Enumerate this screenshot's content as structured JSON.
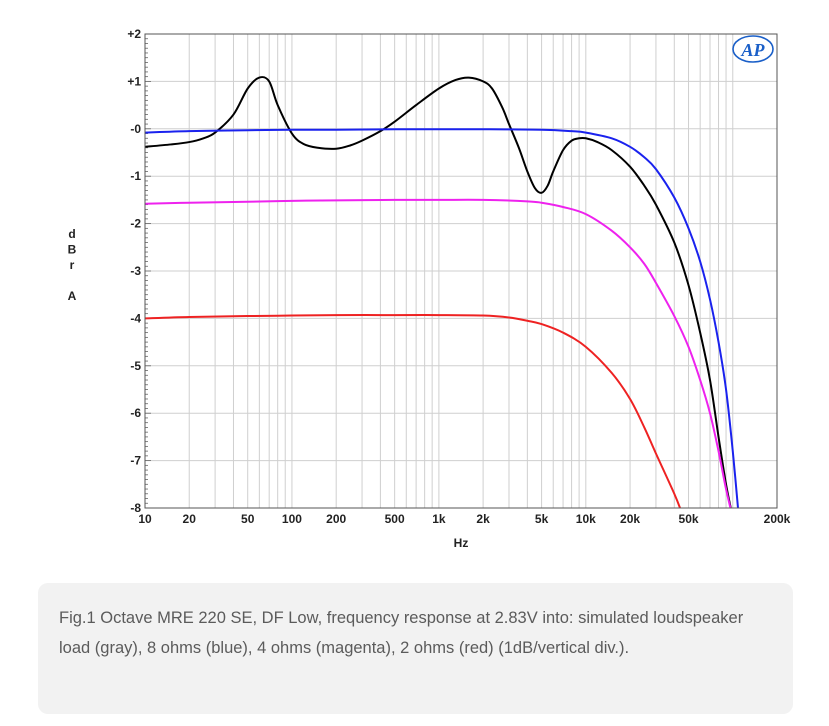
{
  "chart_data": {
    "type": "line",
    "title": "",
    "logo": "AP",
    "xlabel": "Hz",
    "ylabel": "dBr A",
    "ylabel_letters": [
      "d",
      "B",
      "r",
      "",
      "A"
    ],
    "xscale": "log",
    "xlim": [
      10,
      200000
    ],
    "ylim": [
      -8,
      2
    ],
    "grid": true,
    "x_ticks": [
      {
        "value": 10,
        "label": "10"
      },
      {
        "value": 20,
        "label": "20"
      },
      {
        "value": 50,
        "label": "50"
      },
      {
        "value": 100,
        "label": "100"
      },
      {
        "value": 200,
        "label": "200"
      },
      {
        "value": 500,
        "label": "500"
      },
      {
        "value": 1000,
        "label": "1k"
      },
      {
        "value": 2000,
        "label": "2k"
      },
      {
        "value": 5000,
        "label": "5k"
      },
      {
        "value": 10000,
        "label": "10k"
      },
      {
        "value": 20000,
        "label": "20k"
      },
      {
        "value": 50000,
        "label": "50k"
      },
      {
        "value": 200000,
        "label": "200k"
      }
    ],
    "y_ticks": [
      {
        "value": 2,
        "label": "+2"
      },
      {
        "value": 1,
        "label": "+1"
      },
      {
        "value": 0,
        "label": "-0"
      },
      {
        "value": -1,
        "label": "-1"
      },
      {
        "value": -2,
        "label": "-2"
      },
      {
        "value": -3,
        "label": "-3"
      },
      {
        "value": -4,
        "label": "-4"
      },
      {
        "value": -5,
        "label": "-5"
      },
      {
        "value": -6,
        "label": "-6"
      },
      {
        "value": -7,
        "label": "-7"
      },
      {
        "value": -8,
        "label": "-8"
      }
    ],
    "series": [
      {
        "name": "simulated loudspeaker load",
        "color": "#000000",
        "x": [
          10,
          15,
          20,
          25,
          30,
          40,
          50,
          60,
          70,
          80,
          100,
          120,
          150,
          200,
          250,
          300,
          400,
          500,
          700,
          1000,
          1300,
          1600,
          2000,
          2300,
          2700,
          3000,
          3500,
          4000,
          4500,
          5000,
          5500,
          6000,
          7000,
          8000,
          9000,
          10000,
          12000,
          15000,
          20000,
          25000,
          30000,
          40000,
          50000,
          60000,
          70000,
          80000,
          90000,
          100000
        ],
        "y": [
          -0.38,
          -0.33,
          -0.28,
          -0.2,
          -0.08,
          0.3,
          0.85,
          1.08,
          1.0,
          0.5,
          -0.1,
          -0.32,
          -0.4,
          -0.42,
          -0.35,
          -0.25,
          -0.05,
          0.15,
          0.5,
          0.85,
          1.03,
          1.08,
          1.0,
          0.85,
          0.45,
          0.1,
          -0.4,
          -0.9,
          -1.25,
          -1.35,
          -1.2,
          -0.9,
          -0.45,
          -0.25,
          -0.2,
          -0.2,
          -0.28,
          -0.45,
          -0.8,
          -1.2,
          -1.6,
          -2.4,
          -3.3,
          -4.3,
          -5.3,
          -6.5,
          -7.5,
          -8.2
        ]
      },
      {
        "name": "8 ohms",
        "color": "#1a22ee",
        "x": [
          10,
          20,
          50,
          100,
          200,
          500,
          1000,
          2000,
          5000,
          8000,
          10000,
          15000,
          20000,
          25000,
          30000,
          40000,
          50000,
          60000,
          70000,
          80000,
          90000,
          100000,
          110000
        ],
        "y": [
          -0.08,
          -0.05,
          -0.03,
          -0.02,
          -0.02,
          -0.01,
          -0.01,
          -0.01,
          -0.02,
          -0.05,
          -0.08,
          -0.2,
          -0.38,
          -0.6,
          -0.85,
          -1.45,
          -2.1,
          -2.8,
          -3.6,
          -4.5,
          -5.5,
          -6.8,
          -8.2
        ]
      },
      {
        "name": "4 ohms",
        "color": "#ee22ee",
        "x": [
          10,
          20,
          50,
          100,
          200,
          500,
          1000,
          2000,
          4000,
          5000,
          7000,
          10000,
          15000,
          20000,
          25000,
          30000,
          40000,
          50000,
          60000,
          70000,
          80000,
          90000,
          100000
        ],
        "y": [
          -1.58,
          -1.56,
          -1.54,
          -1.52,
          -1.51,
          -1.5,
          -1.5,
          -1.5,
          -1.53,
          -1.56,
          -1.65,
          -1.8,
          -2.15,
          -2.5,
          -2.85,
          -3.25,
          -3.95,
          -4.6,
          -5.3,
          -6.0,
          -6.8,
          -7.6,
          -8.2
        ]
      },
      {
        "name": "2 ohms",
        "color": "#ee2222",
        "x": [
          10,
          20,
          50,
          100,
          200,
          500,
          1000,
          2000,
          3000,
          4000,
          5000,
          7000,
          10000,
          15000,
          20000,
          25000,
          30000,
          40000,
          45000
        ],
        "y": [
          -4.0,
          -3.97,
          -3.95,
          -3.94,
          -3.93,
          -3.93,
          -3.93,
          -3.94,
          -3.98,
          -4.05,
          -4.12,
          -4.3,
          -4.6,
          -5.15,
          -5.7,
          -6.3,
          -6.85,
          -7.7,
          -8.1
        ]
      }
    ]
  },
  "caption": {
    "text": "Fig.1 Octave MRE 220 SE, DF Low, frequency response at 2.83V into: simulated loudspeaker load (gray), 8 ohms (blue), 4 ohms (magenta), 2 ohms (red) (1dB/vertical div.)."
  }
}
